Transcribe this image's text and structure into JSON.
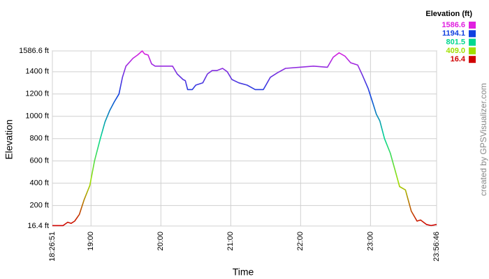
{
  "chart_data": {
    "type": "line",
    "y_label": "Elevation",
    "x_label": "Time",
    "watermark": "created by GPSVisualizer.com",
    "xlim": [
      "18:26:51",
      "23:56:46"
    ],
    "xticks": [
      "18:26:51",
      "19:00",
      "20:00",
      "21:00",
      "22:00",
      "23:00",
      "23:56:46"
    ],
    "ylim": [
      16.4,
      1586.6
    ],
    "yticks": [
      {
        "value": 16.4,
        "label": "16.4 ft"
      },
      {
        "value": 200,
        "label": "200 ft"
      },
      {
        "value": 400,
        "label": "400 ft"
      },
      {
        "value": 600,
        "label": "600 ft"
      },
      {
        "value": 800,
        "label": "800 ft"
      },
      {
        "value": 1000,
        "label": "1000 ft"
      },
      {
        "value": 1200,
        "label": "1200 ft"
      },
      {
        "value": 1400,
        "label": "1400 ft"
      },
      {
        "value": 1586.6,
        "label": "1586.6 ft"
      }
    ],
    "grid": true,
    "x": [
      "18:26:51",
      "18:36",
      "18:40",
      "18:43",
      "18:46",
      "18:50",
      "18:54",
      "18:59",
      "19:03",
      "19:08",
      "19:12",
      "19:16",
      "19:20",
      "19:24",
      "19:27",
      "19:30",
      "19:36",
      "19:40",
      "19:44",
      "19:46",
      "19:49",
      "19:52",
      "19:55",
      "20:00",
      "20:10",
      "20:14",
      "20:19",
      "20:21",
      "20:23",
      "20:27",
      "20:30",
      "20:36",
      "20:40",
      "20:44",
      "20:48",
      "20:53",
      "20:57",
      "21:01",
      "21:07",
      "21:14",
      "21:21",
      "21:28",
      "21:34",
      "21:40",
      "21:47",
      "21:59",
      "22:11",
      "22:23",
      "22:28",
      "22:33",
      "22:38",
      "22:43",
      "22:49",
      "22:53",
      "22:58",
      "23:02",
      "23:05",
      "23:08",
      "23:12",
      "23:17",
      "23:21",
      "23:25",
      "23:30",
      "23:35",
      "23:40",
      "23:43",
      "23:48",
      "23:52",
      "23:56:46"
    ],
    "values": [
      20,
      20,
      50,
      40,
      60,
      120,
      250,
      380,
      600,
      800,
      950,
      1050,
      1130,
      1200,
      1350,
      1450,
      1520,
      1550,
      1586.6,
      1560,
      1550,
      1470,
      1450,
      1450,
      1450,
      1380,
      1330,
      1320,
      1240,
      1240,
      1280,
      1300,
      1380,
      1410,
      1410,
      1430,
      1400,
      1330,
      1300,
      1280,
      1240,
      1240,
      1350,
      1390,
      1430,
      1440,
      1450,
      1440,
      1530,
      1570,
      1540,
      1480,
      1460,
      1370,
      1250,
      1120,
      1020,
      960,
      800,
      670,
      520,
      370,
      340,
      150,
      60,
      70,
      30,
      20,
      30
    ],
    "legend": {
      "title": "Elevation (ft)",
      "entries": [
        {
          "value": 1586.6,
          "color": "#e020e0"
        },
        {
          "value": 1194.1,
          "color": "#1040e0"
        },
        {
          "value": 801.5,
          "color": "#00d890"
        },
        {
          "value": 409.0,
          "label": "409.0",
          "color": "#a0e000"
        },
        {
          "value": 16.4,
          "color": "#d00000"
        }
      ]
    }
  }
}
